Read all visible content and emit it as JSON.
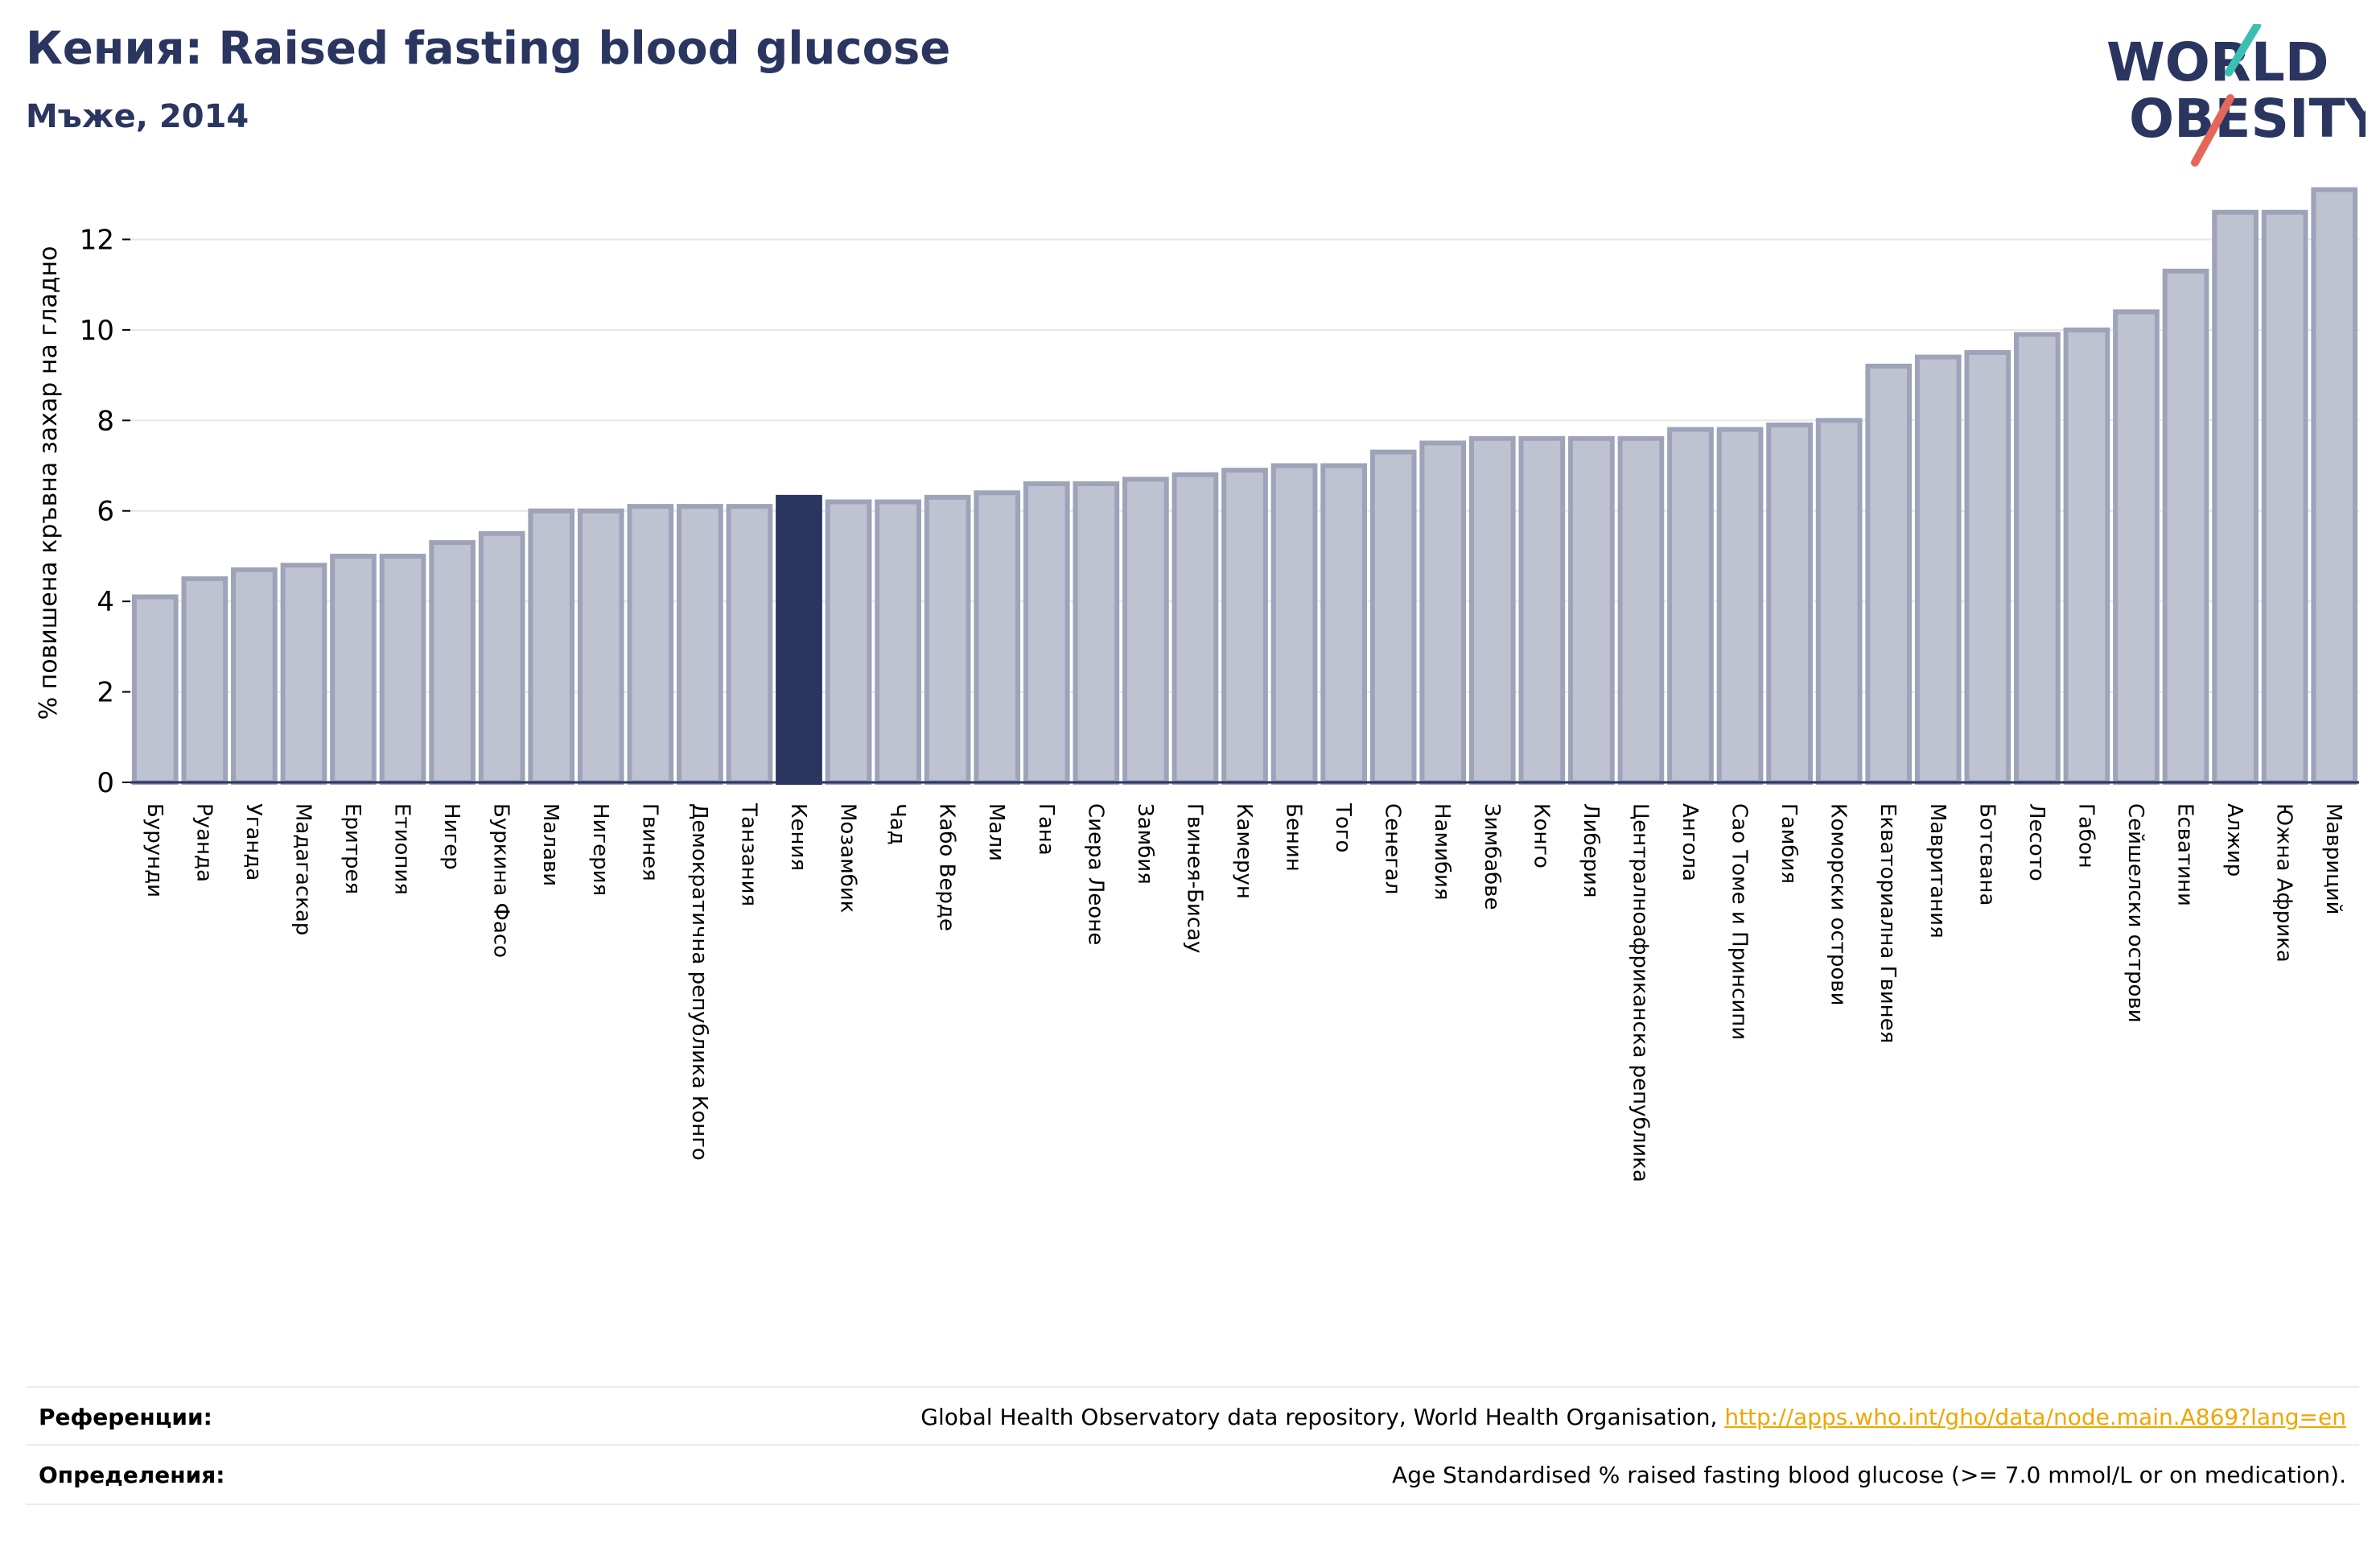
{
  "header": {
    "title": "Кения: Raised fasting blood glucose",
    "subtitle": "Мъже, 2014"
  },
  "logo": {
    "line1": "WORLD",
    "line2": "OBESITY"
  },
  "colors": {
    "bar": "#bfc2d0",
    "bar_edge": "#9ea3ba",
    "highlight": "#2a3560",
    "axis": "#2a3560",
    "grid": "#e6e6e6"
  },
  "chart_data": {
    "type": "bar",
    "ylabel": "% повишена кръвна захар на гладно",
    "ylim": [
      0,
      13.2
    ],
    "yticks": [
      0,
      2,
      4,
      6,
      8,
      10,
      12
    ],
    "grid": true,
    "highlight": "Кения",
    "categories": [
      "Бурунди",
      "Руанда",
      "Уганда",
      "Мадагаскар",
      "Еритрея",
      "Етиопия",
      "Нигер",
      "Буркина Фасо",
      "Малави",
      "Нигерия",
      "Гвинея",
      "Демократична република Конго",
      "Танзания",
      "Кения",
      "Мозамбик",
      "Чад",
      "Кабо Верде",
      "Мали",
      "Гана",
      "Сиера Леоне",
      "Замбия",
      "Гвинея-Бисау",
      "Камерун",
      "Бенин",
      "Того",
      "Сенегал",
      "Намибия",
      "Зимбабве",
      "Конго",
      "Либерия",
      "Централноафриканска република",
      "Ангола",
      "Сао Томе и Принсипи",
      "Гамбия",
      "Коморски острови",
      "Екваториална Гвинея",
      "Мавритания",
      "Ботсвана",
      "Лесото",
      "Габон",
      "Сейшелски острови",
      "Есватини",
      "Алжир",
      "Южна Африка",
      "Мавриций"
    ],
    "values": [
      4.1,
      4.5,
      4.7,
      4.8,
      5.0,
      5.0,
      5.3,
      5.5,
      6.0,
      6.0,
      6.1,
      6.1,
      6.1,
      6.3,
      6.2,
      6.2,
      6.3,
      6.4,
      6.6,
      6.6,
      6.7,
      6.8,
      6.9,
      7.0,
      7.0,
      7.3,
      7.5,
      7.6,
      7.6,
      7.6,
      7.6,
      7.8,
      7.8,
      7.9,
      8.0,
      9.2,
      9.4,
      9.5,
      9.9,
      10.0,
      10.4,
      11.3,
      12.6,
      12.6,
      13.1
    ]
  },
  "footer": {
    "references_label": "Референции:",
    "references_text": "Global Health Observatory data repository, World Health Organisation, ",
    "references_link": "http://apps.who.int/gho/data/node.main.A869?lang=en",
    "definitions_label": "Определения:",
    "definitions_text": "Age Standardised % raised fasting blood glucose (>= 7.0 mmol/L or on medication)."
  }
}
